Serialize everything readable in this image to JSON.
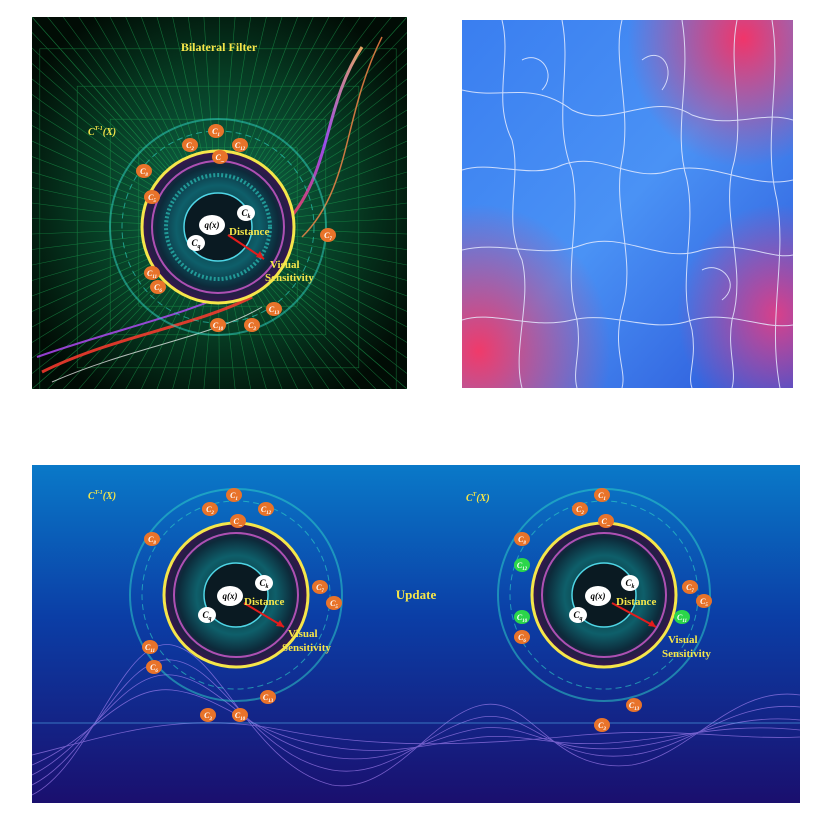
{
  "filter_panel": {
    "title": "Bilateral Filter",
    "set_label": "C",
    "set_sup": "T-1",
    "set_arg": "(X)",
    "center": "q(x)",
    "inner_upper": "C",
    "inner_upper_sub": "k",
    "inner_lower": "C",
    "inner_lower_sub": "q",
    "distance": "Distance",
    "visual": "Visual",
    "sensitivity": "Sensitivity",
    "clusters": [
      {
        "name": "C",
        "sub": "1"
      },
      {
        "name": "C",
        "sub": "2"
      },
      {
        "name": "C",
        "sub": "12"
      },
      {
        "name": "C",
        "sub": "..."
      },
      {
        "name": "C",
        "sub": "8"
      },
      {
        "name": "C",
        "sub": "5"
      },
      {
        "name": "C",
        "sub": "7"
      },
      {
        "name": "C",
        "sub": "11"
      },
      {
        "name": "C",
        "sub": "6"
      },
      {
        "name": "C",
        "sub": "13"
      },
      {
        "name": "C",
        "sub": "3"
      },
      {
        "name": "C",
        "sub": "10"
      }
    ]
  },
  "update_panel": {
    "update_label": "Update",
    "left": {
      "set_label": "C",
      "set_sup": "T-1",
      "set_arg": "(X)",
      "center": "q(x)",
      "inner_upper": "C",
      "inner_upper_sub": "k",
      "inner_lower": "C",
      "inner_lower_sub": "q",
      "distance": "Distance",
      "visual": "Visual",
      "sensitivity": "Sensitivity",
      "clusters": [
        {
          "name": "C",
          "sub": "1"
        },
        {
          "name": "C",
          "sub": "2"
        },
        {
          "name": "C",
          "sub": "12"
        },
        {
          "name": "C",
          "sub": "..."
        },
        {
          "name": "C",
          "sub": "8"
        },
        {
          "name": "C",
          "sub": "7"
        },
        {
          "name": "C",
          "sub": "5"
        },
        {
          "name": "C",
          "sub": "11"
        },
        {
          "name": "C",
          "sub": "6"
        },
        {
          "name": "C",
          "sub": "13"
        },
        {
          "name": "C",
          "sub": "3"
        },
        {
          "name": "C",
          "sub": "10"
        }
      ]
    },
    "right": {
      "set_label": "C",
      "set_sup": "T",
      "set_arg": "(X)",
      "center": "q(x)",
      "inner_upper": "C",
      "inner_upper_sub": "k",
      "inner_lower": "C",
      "inner_lower_sub": "q",
      "distance": "Distance",
      "visual": "Visual",
      "sensitivity": "Sensitivity",
      "clusters": [
        {
          "name": "C",
          "sub": "1"
        },
        {
          "name": "C",
          "sub": "2"
        },
        {
          "name": "C",
          "sub": "..."
        },
        {
          "name": "C",
          "sub": "8"
        },
        {
          "name": "C",
          "sub": "12"
        },
        {
          "name": "C",
          "sub": "7"
        },
        {
          "name": "C",
          "sub": "5"
        },
        {
          "name": "C",
          "sub": "10"
        },
        {
          "name": "C",
          "sub": "11"
        },
        {
          "name": "C",
          "sub": "6"
        },
        {
          "name": "C",
          "sub": "13"
        },
        {
          "name": "C",
          "sub": "3"
        }
      ]
    }
  },
  "colors": {
    "cluster_orange": "#e8732a",
    "cluster_green": "#2bd64a",
    "annotation_yellow": "#f5e64a",
    "arrow_red": "#e31c1c"
  }
}
